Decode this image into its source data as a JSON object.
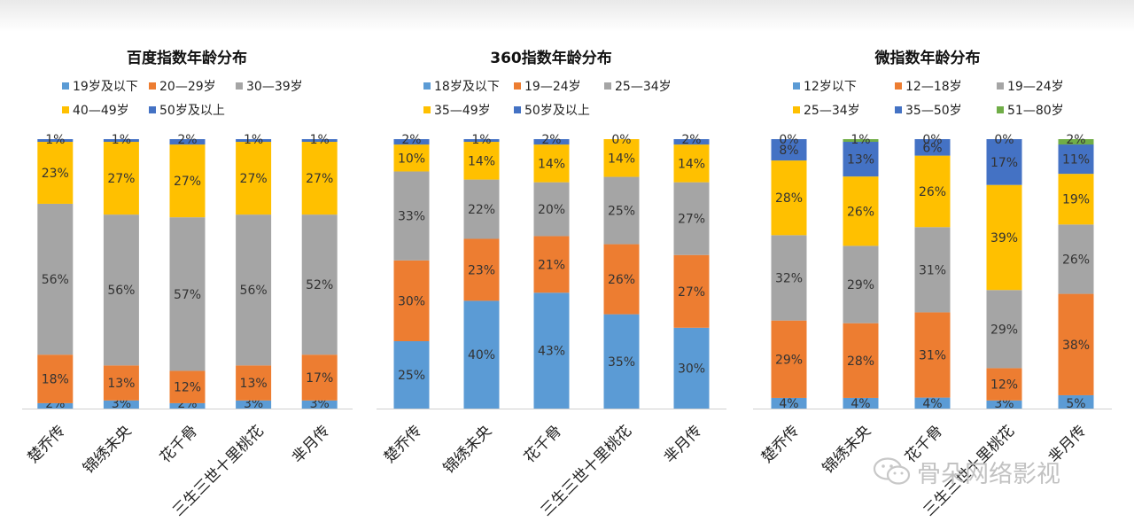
{
  "chart_data": [
    {
      "type": "bar",
      "stacked": true,
      "normalized": true,
      "title": "百度指数年龄分布",
      "categories": [
        "楚乔传",
        "锦绣未央",
        "花千骨",
        "三生三世十里桃花",
        "芈月传"
      ],
      "series": [
        {
          "name": "19岁及以下",
          "color": "#5b9bd5",
          "values": [
            2,
            3,
            2,
            3,
            3
          ]
        },
        {
          "name": "20—29岁",
          "color": "#ed7d31",
          "values": [
            18,
            13,
            12,
            13,
            17
          ]
        },
        {
          "name": "30—39岁",
          "color": "#a5a5a5",
          "values": [
            56,
            56,
            57,
            56,
            52
          ]
        },
        {
          "name": "40—49岁",
          "color": "#ffc000",
          "values": [
            23,
            27,
            27,
            27,
            27
          ]
        },
        {
          "name": "50岁及以上",
          "color": "#4472c4",
          "values": [
            1,
            1,
            2,
            1,
            1
          ]
        }
      ],
      "labels": [
        [
          "2%",
          "18%",
          "56%",
          "23%",
          "1%"
        ],
        [
          "3%",
          "13%",
          "56%",
          "27%",
          "1%"
        ],
        [
          "2%",
          "12%",
          "57%",
          "27%",
          "2%"
        ],
        [
          "3%",
          "13%",
          "56%",
          "27%",
          "1%"
        ],
        [
          "3%",
          "17%",
          "52%",
          "27%",
          "1%"
        ]
      ]
    },
    {
      "type": "bar",
      "stacked": true,
      "normalized": true,
      "title": "360指数年龄分布",
      "categories": [
        "楚乔传",
        "锦绣未央",
        "花千骨",
        "三生三世十里桃花",
        "芈月传"
      ],
      "series": [
        {
          "name": "18岁及以下",
          "color": "#5b9bd5",
          "values": [
            25,
            40,
            43,
            35,
            30
          ]
        },
        {
          "name": "19—24岁",
          "color": "#ed7d31",
          "values": [
            30,
            23,
            21,
            26,
            27
          ]
        },
        {
          "name": "25—34岁",
          "color": "#a5a5a5",
          "values": [
            33,
            22,
            20,
            25,
            27
          ]
        },
        {
          "name": "35—49岁",
          "color": "#ffc000",
          "values": [
            10,
            14,
            14,
            14,
            14
          ]
        },
        {
          "name": "50岁及以上",
          "color": "#4472c4",
          "values": [
            2,
            1,
            2,
            0,
            2
          ]
        }
      ],
      "labels": [
        [
          "25%",
          "30%",
          "33%",
          "10%",
          "2%"
        ],
        [
          "40%",
          "23%",
          "22%",
          "14%",
          "1%"
        ],
        [
          "43%",
          "21%",
          "20%",
          "14%",
          "2%"
        ],
        [
          "35%",
          "26%",
          "25%",
          "14%",
          "0%"
        ],
        [
          "30%",
          "27%",
          "27%",
          "14%",
          "2%"
        ]
      ]
    },
    {
      "type": "bar",
      "stacked": true,
      "normalized": true,
      "title": "微指数年龄分布",
      "categories": [
        "楚乔传",
        "锦绣未央",
        "花千骨",
        "三生三世十里桃花",
        "芈月传"
      ],
      "series": [
        {
          "name": "12岁以下",
          "color": "#5b9bd5",
          "values": [
            4,
            4,
            4,
            3,
            5
          ]
        },
        {
          "name": "12—18岁",
          "color": "#ed7d31",
          "values": [
            29,
            28,
            31,
            12,
            38
          ]
        },
        {
          "name": "19—24岁",
          "color": "#a5a5a5",
          "values": [
            32,
            29,
            31,
            29,
            26
          ]
        },
        {
          "name": "25—34岁",
          "color": "#ffc000",
          "values": [
            28,
            26,
            26,
            39,
            19
          ]
        },
        {
          "name": "35—50岁",
          "color": "#4472c4",
          "values": [
            8,
            13,
            6,
            17,
            11
          ]
        },
        {
          "name": "51—80岁",
          "color": "#70ad47",
          "values": [
            0,
            1,
            0,
            0,
            2
          ]
        }
      ],
      "labels": [
        [
          "4%",
          "29%",
          "32%",
          "28%",
          "8%",
          "0%"
        ],
        [
          "4%",
          "28%",
          "29%",
          "26%",
          "13%",
          "1%"
        ],
        [
          "4%",
          "31%",
          "31%",
          "26%",
          "6%",
          "0%"
        ],
        [
          "3%",
          "12%",
          "29%",
          "39%",
          "17%",
          "0%"
        ],
        [
          "5%",
          "38%",
          "26%",
          "19%",
          "11%",
          "2%"
        ]
      ]
    }
  ],
  "watermark": {
    "text": "骨朵网络影视",
    "icon": "wechat-icon"
  }
}
